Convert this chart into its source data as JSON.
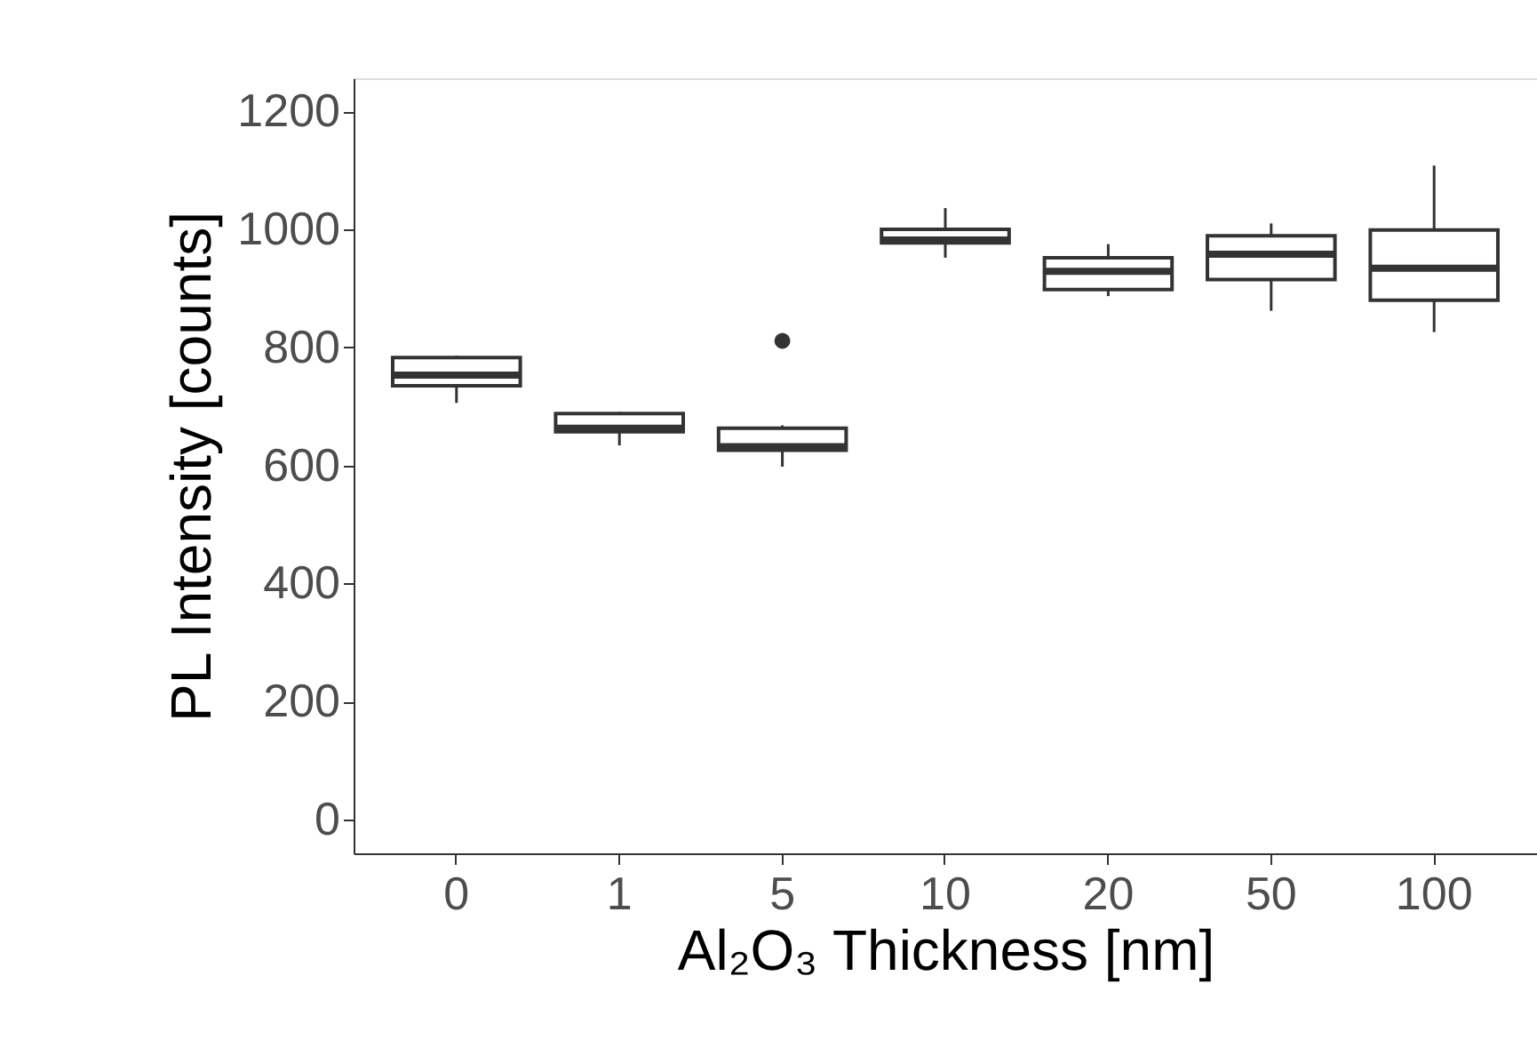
{
  "chart_data": {
    "type": "box",
    "xlabel": "Al₂O₃ Thickness [nm]",
    "ylabel": "PL Intensity [counts]",
    "categories": [
      "0",
      "1",
      "5",
      "10",
      "20",
      "50",
      "100"
    ],
    "boxes": [
      {
        "low": 706,
        "q1": 735,
        "median": 753,
        "q3": 783,
        "high": 786
      },
      {
        "low": 634,
        "q1": 657,
        "median": 663,
        "q3": 688,
        "high": 691
      },
      {
        "low": 598,
        "q1": 626,
        "median": 632,
        "q3": 663,
        "high": 668,
        "outliers": [
          811
        ]
      },
      {
        "low": 952,
        "q1": 977,
        "median": 982,
        "q3": 1000,
        "high": 1036
      },
      {
        "low": 887,
        "q1": 898,
        "median": 929,
        "q3": 952,
        "high": 975
      },
      {
        "low": 862,
        "q1": 915,
        "median": 958,
        "q3": 989,
        "high": 1010
      },
      {
        "low": 826,
        "q1": 880,
        "median": 934,
        "q3": 999,
        "high": 1108
      }
    ],
    "ylim": [
      -57,
      1256
    ],
    "yticks": [
      0,
      200,
      400,
      600,
      800,
      1000,
      1200
    ]
  }
}
